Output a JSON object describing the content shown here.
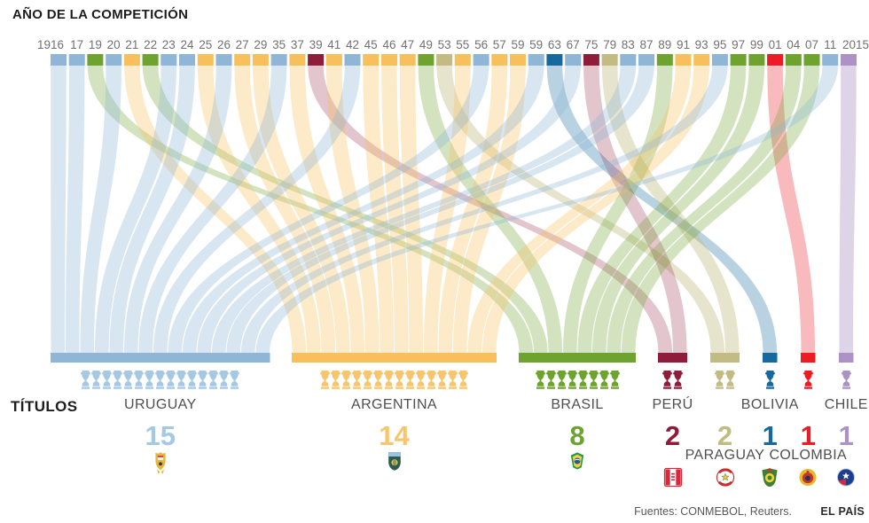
{
  "header": {
    "title": "AÑO DE LA COMPETICIÓN"
  },
  "labels": {
    "titles": "TÍTULOS"
  },
  "footer": {
    "sources": "Fuentes: CONMEBOL, Reuters.",
    "brand": "EL PAÍS"
  },
  "chart_data": {
    "type": "sankey",
    "title": "AÑO DE LA COMPETICIÓN",
    "unit_label": "TÍTULOS",
    "x_axis": "competition year ticks, 1916–2015, colored by winning country",
    "years": [
      {
        "label": "1916",
        "winner": "uruguay"
      },
      {
        "label": "17",
        "winner": "uruguay"
      },
      {
        "label": "19",
        "winner": "brasil"
      },
      {
        "label": "20",
        "winner": "uruguay"
      },
      {
        "label": "21",
        "winner": "argentina"
      },
      {
        "label": "22",
        "winner": "brasil"
      },
      {
        "label": "23",
        "winner": "uruguay"
      },
      {
        "label": "24",
        "winner": "uruguay"
      },
      {
        "label": "25",
        "winner": "argentina"
      },
      {
        "label": "26",
        "winner": "uruguay"
      },
      {
        "label": "27",
        "winner": "argentina"
      },
      {
        "label": "29",
        "winner": "argentina"
      },
      {
        "label": "35",
        "winner": "uruguay"
      },
      {
        "label": "37",
        "winner": "argentina"
      },
      {
        "label": "39",
        "winner": "peru"
      },
      {
        "label": "41",
        "winner": "argentina"
      },
      {
        "label": "42",
        "winner": "uruguay"
      },
      {
        "label": "45",
        "winner": "argentina"
      },
      {
        "label": "46",
        "winner": "argentina"
      },
      {
        "label": "47",
        "winner": "argentina"
      },
      {
        "label": "49",
        "winner": "brasil"
      },
      {
        "label": "53",
        "winner": "paraguay"
      },
      {
        "label": "55",
        "winner": "argentina"
      },
      {
        "label": "56",
        "winner": "uruguay"
      },
      {
        "label": "57",
        "winner": "argentina"
      },
      {
        "label": "59",
        "winner": "argentina"
      },
      {
        "label": "59",
        "winner": "uruguay"
      },
      {
        "label": "63",
        "winner": "bolivia"
      },
      {
        "label": "67",
        "winner": "uruguay"
      },
      {
        "label": "75",
        "winner": "peru"
      },
      {
        "label": "79",
        "winner": "paraguay"
      },
      {
        "label": "83",
        "winner": "uruguay"
      },
      {
        "label": "87",
        "winner": "uruguay"
      },
      {
        "label": "89",
        "winner": "brasil"
      },
      {
        "label": "91",
        "winner": "argentina"
      },
      {
        "label": "93",
        "winner": "argentina"
      },
      {
        "label": "95",
        "winner": "uruguay"
      },
      {
        "label": "97",
        "winner": "brasil"
      },
      {
        "label": "99",
        "winner": "brasil"
      },
      {
        "label": "01",
        "winner": "colombia"
      },
      {
        "label": "04",
        "winner": "brasil"
      },
      {
        "label": "07",
        "winner": "brasil"
      },
      {
        "label": "11",
        "winner": "uruguay"
      },
      {
        "label": "2015",
        "winner": "chile"
      }
    ],
    "countries": [
      {
        "id": "uruguay",
        "label": "URUGUAY",
        "titles": 15,
        "color": "#8fb6d6",
        "soft_color": "#a5c8e4",
        "ribbon": "rgba(143,182,214,0.35)",
        "label_row": "primary"
      },
      {
        "id": "argentina",
        "label": "ARGENTINA",
        "titles": 14,
        "color": "#f7c05c",
        "soft_color": "#f7c56b",
        "ribbon": "rgba(247,192,92,0.33)",
        "label_row": "primary"
      },
      {
        "id": "brasil",
        "label": "BRASIL",
        "titles": 8,
        "color": "#6da32e",
        "soft_color": "#6da32e",
        "ribbon": "rgba(109,163,46,0.30)",
        "label_row": "primary"
      },
      {
        "id": "peru",
        "label": "PERÚ",
        "titles": 2,
        "color": "#8e1d3c",
        "soft_color": "#8e1d3c",
        "ribbon": "rgba(142,29,60,0.26)",
        "label_row": "primary"
      },
      {
        "id": "paraguay",
        "label": "PARAGUAY",
        "titles": 2,
        "color": "#c2bb84",
        "soft_color": "#c2bb84",
        "ribbon": "rgba(194,187,132,0.40)",
        "label_row": "secondary"
      },
      {
        "id": "bolivia",
        "label": "BOLIVIA",
        "titles": 1,
        "color": "#16699e",
        "soft_color": "#16699e",
        "ribbon": "rgba(22,105,158,0.30)",
        "label_row": "primary"
      },
      {
        "id": "colombia",
        "label": "COLOMBIA",
        "titles": 1,
        "color": "#ec1c24",
        "soft_color": "#ec1c24",
        "ribbon": "rgba(236,28,36,0.30)",
        "label_row": "secondary"
      },
      {
        "id": "chile",
        "label": "CHILE",
        "titles": 1,
        "color": "#ad93c5",
        "soft_color": "#ad93c5",
        "ribbon": "rgba(173,147,197,0.40)",
        "label_row": "primary"
      }
    ]
  }
}
